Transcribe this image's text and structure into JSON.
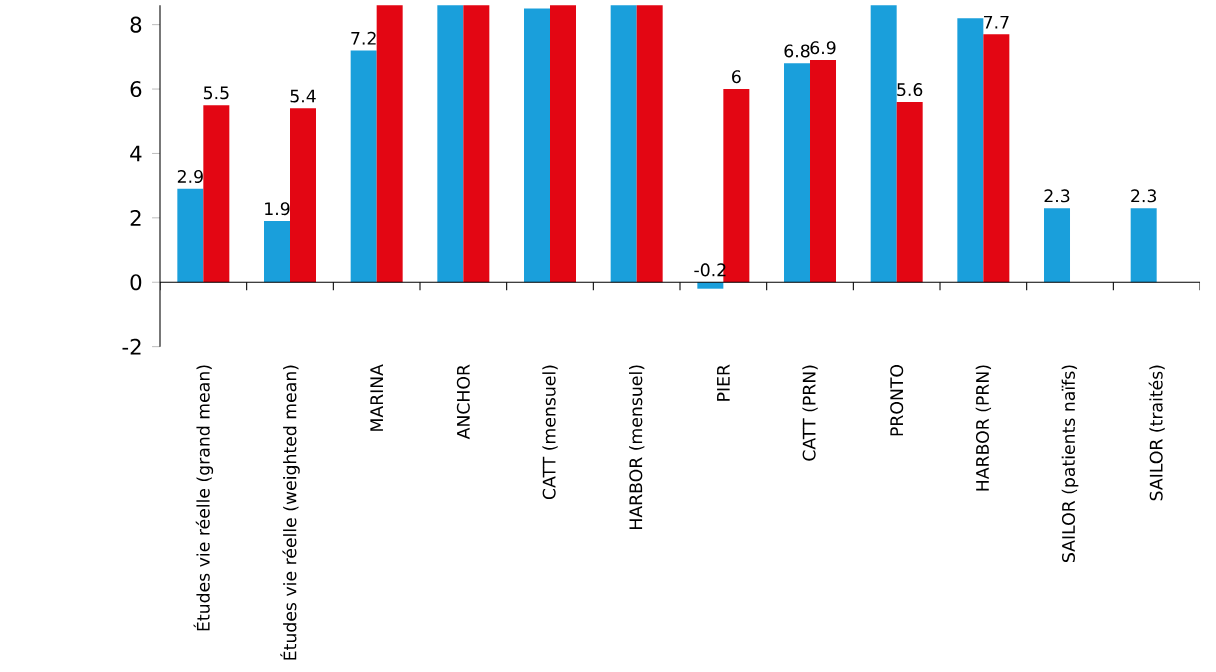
{
  "chart_data": {
    "type": "bar",
    "categories": [
      "Études vie réelle (grand mean)",
      "Études vie réelle (weighted mean)",
      "MARINA",
      "ANCHOR",
      "CATT (mensuel)",
      "HARBOR (mensuel)",
      "PIER",
      "CATT (PRN)",
      "PRONTO",
      "HARBOR (PRN)",
      "SAILOR (patients naïfs)",
      "SAILOR (traités)"
    ],
    "series": [
      {
        "color": "#1a9fdb",
        "values": [
          2.9,
          1.9,
          7.2,
          8.6,
          8.5,
          8.6,
          -0.2,
          6.8,
          8.6,
          8.2,
          2.3,
          2.3
        ],
        "value_labels": [
          "2.9",
          "1.9",
          "7.2",
          null,
          null,
          null,
          "-0.2",
          "6.8",
          null,
          null,
          "2.3",
          "2.3"
        ]
      },
      {
        "color": "#e30613",
        "values": [
          5.5,
          5.4,
          8.6,
          8.6,
          8.6,
          8.6,
          6,
          6.9,
          5.6,
          7.7,
          null,
          null
        ],
        "value_labels": [
          "5.5",
          "5.4",
          null,
          null,
          null,
          null,
          "6",
          "6.9",
          "5.6",
          "7.7",
          null,
          null
        ]
      }
    ],
    "ylim": [
      -2,
      8.6
    ],
    "yticks": [
      -2,
      0,
      2,
      4,
      6,
      8
    ]
  }
}
